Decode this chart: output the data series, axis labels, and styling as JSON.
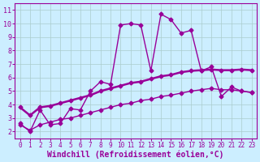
{
  "xlabel": "Windchill (Refroidissement éolien,°C)",
  "background_color": "#cceeff",
  "line_color": "#990099",
  "grid_color": "#aacccc",
  "xlim": [
    -0.5,
    23.5
  ],
  "ylim": [
    1.5,
    11.5
  ],
  "xticks": [
    0,
    1,
    2,
    3,
    4,
    5,
    6,
    7,
    8,
    9,
    10,
    11,
    12,
    13,
    14,
    15,
    16,
    17,
    18,
    19,
    20,
    21,
    22,
    23
  ],
  "yticks": [
    2,
    3,
    4,
    5,
    6,
    7,
    8,
    9,
    10,
    11
  ],
  "series1_x": [
    0,
    1,
    2,
    3,
    4,
    5,
    6,
    7,
    8,
    9,
    10,
    11,
    12,
    13,
    14,
    15,
    16,
    17,
    18,
    19,
    20,
    21,
    22,
    23
  ],
  "series1_y": [
    2.6,
    2.0,
    3.6,
    2.5,
    2.6,
    3.7,
    3.6,
    5.0,
    5.7,
    5.5,
    9.9,
    10.0,
    9.9,
    6.5,
    10.7,
    10.3,
    9.3,
    9.5,
    6.5,
    6.8,
    4.6,
    5.3,
    5.0,
    4.9
  ],
  "series2_x": [
    0,
    1,
    2,
    3,
    4,
    5,
    6,
    7,
    8,
    9,
    10,
    11,
    12,
    13,
    14,
    15,
    16,
    17,
    18,
    19,
    20,
    21,
    22,
    23
  ],
  "series2_y": [
    3.8,
    3.2,
    3.8,
    3.9,
    4.1,
    4.3,
    4.5,
    4.7,
    5.0,
    5.2,
    5.4,
    5.6,
    5.7,
    5.9,
    6.1,
    6.2,
    6.4,
    6.5,
    6.55,
    6.6,
    6.55,
    6.55,
    6.6,
    6.55
  ],
  "series3_x": [
    0,
    1,
    2,
    3,
    4,
    5,
    6,
    7,
    8,
    9,
    10,
    11,
    12,
    13,
    14,
    15,
    16,
    17,
    18,
    19,
    20,
    21,
    22,
    23
  ],
  "series3_y": [
    2.5,
    2.1,
    2.5,
    2.7,
    2.9,
    3.0,
    3.2,
    3.4,
    3.6,
    3.8,
    4.0,
    4.1,
    4.3,
    4.4,
    4.6,
    4.7,
    4.85,
    5.0,
    5.1,
    5.2,
    5.1,
    5.1,
    5.0,
    4.9
  ],
  "marker": "D",
  "markersize": 2.5,
  "linewidth": 1.0,
  "linewidth2": 1.8,
  "tick_fontsize": 5.5,
  "xlabel_fontsize": 7
}
